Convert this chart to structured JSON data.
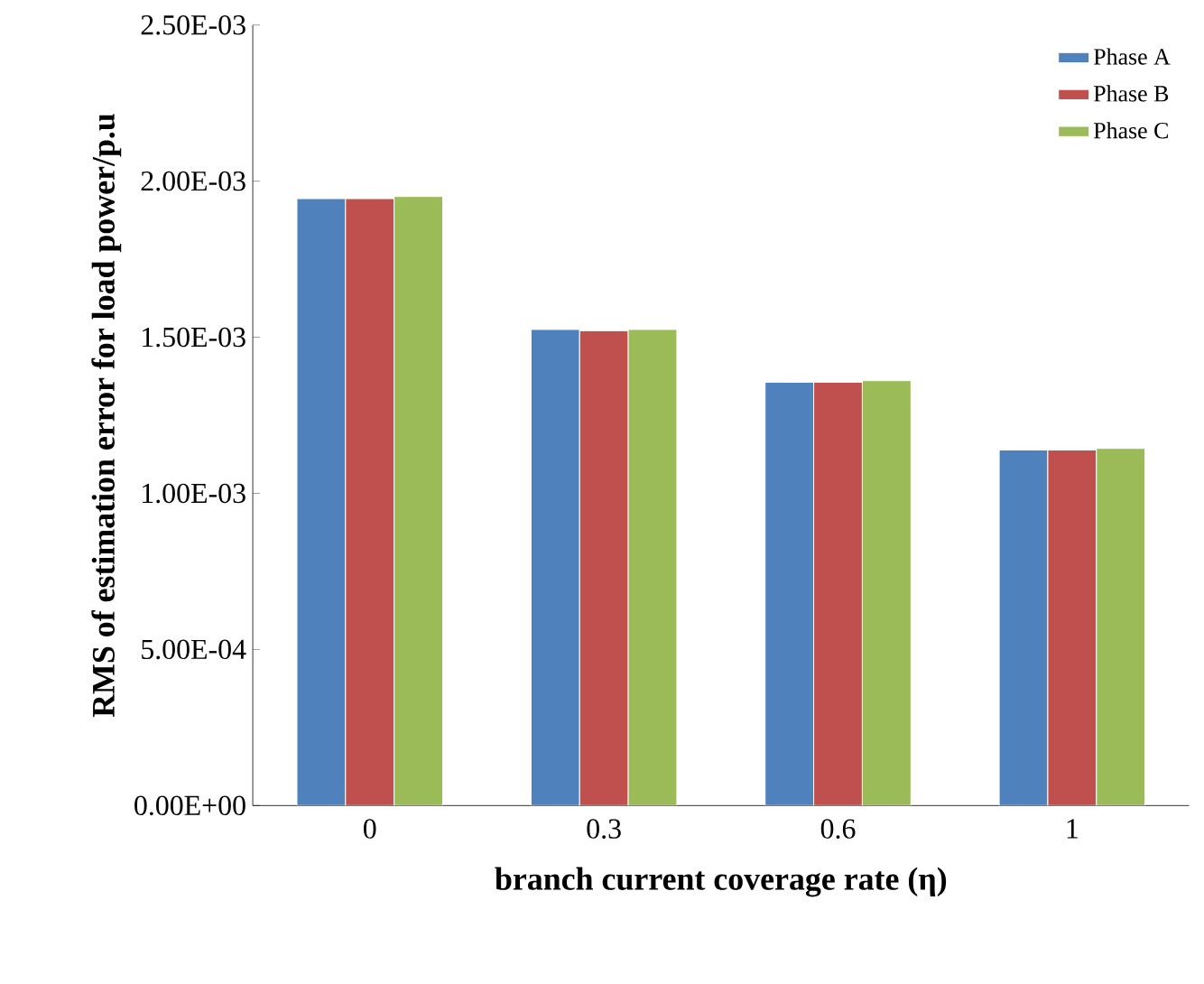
{
  "chart_data": {
    "type": "bar",
    "xlabel": "branch current coverage rate (**η**)",
    "ylabel": "RMS of estimation error for load power/p.u",
    "categories": [
      "0",
      "0.3",
      "0.6",
      "1"
    ],
    "series": [
      {
        "name": "Phase A",
        "color": "#4f81bd",
        "values": [
          0.001944,
          0.001525,
          0.001356,
          0.001139
        ]
      },
      {
        "name": "Phase B",
        "color": "#c0504d",
        "values": [
          0.001944,
          0.001521,
          0.001356,
          0.001139
        ]
      },
      {
        "name": "Phase C",
        "color": "#9bbb59",
        "values": [
          0.001951,
          0.001525,
          0.001361,
          0.001144
        ]
      }
    ],
    "ylim": [
      0,
      0.0025
    ],
    "yticks": [
      {
        "value": 0,
        "label": "0.00E+00"
      },
      {
        "value": 0.0005,
        "label": "5.00E-04"
      },
      {
        "value": 0.001,
        "label": "1.00E-03"
      },
      {
        "value": 0.0015,
        "label": "1.50E-03"
      },
      {
        "value": 0.002,
        "label": "2.00E-03"
      },
      {
        "value": 0.0025,
        "label": "2.50E-03"
      }
    ],
    "grid": false,
    "legend": "top right"
  }
}
